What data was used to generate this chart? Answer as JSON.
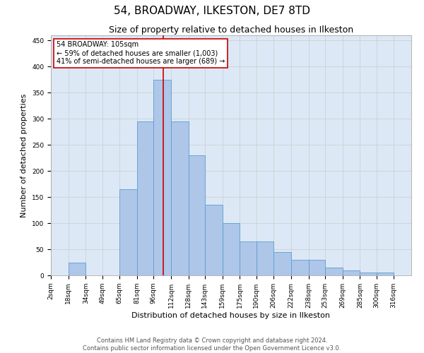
{
  "title1": "54, BROADWAY, ILKESTON, DE7 8TD",
  "title2": "Size of property relative to detached houses in Ilkeston",
  "xlabel": "Distribution of detached houses by size in Ilkeston",
  "ylabel": "Number of detached properties",
  "annotation_line1": "54 BROADWAY: 105sqm",
  "annotation_line2": "← 59% of detached houses are smaller (1,003)",
  "annotation_line3": "41% of semi-detached houses are larger (689) →",
  "footer1": "Contains HM Land Registry data © Crown copyright and database right 2024.",
  "footer2": "Contains public sector information licensed under the Open Government Licence v3.0.",
  "bin_labels": [
    "2sqm",
    "18sqm",
    "34sqm",
    "49sqm",
    "65sqm",
    "81sqm",
    "96sqm",
    "112sqm",
    "128sqm",
    "143sqm",
    "159sqm",
    "175sqm",
    "190sqm",
    "206sqm",
    "222sqm",
    "238sqm",
    "253sqm",
    "269sqm",
    "285sqm",
    "300sqm",
    "316sqm"
  ],
  "bar_heights": [
    0,
    25,
    0,
    0,
    165,
    295,
    375,
    295,
    230,
    135,
    100,
    65,
    65,
    45,
    30,
    30,
    15,
    10,
    5,
    5,
    0
  ],
  "bar_color": "#aec6e8",
  "bar_edge_color": "#5a9fd4",
  "vline_x": 105,
  "vline_color": "#cc0000",
  "annotation_box_color": "#cc0000",
  "ylim": [
    0,
    460
  ],
  "yticks": [
    0,
    50,
    100,
    150,
    200,
    250,
    300,
    350,
    400,
    450
  ],
  "grid_color": "#cccccc",
  "bg_color": "#dce8f5",
  "title_fontsize": 11,
  "subtitle_fontsize": 9,
  "axis_label_fontsize": 8,
  "tick_fontsize": 6.5,
  "annotation_fontsize": 7,
  "footer_fontsize": 6
}
